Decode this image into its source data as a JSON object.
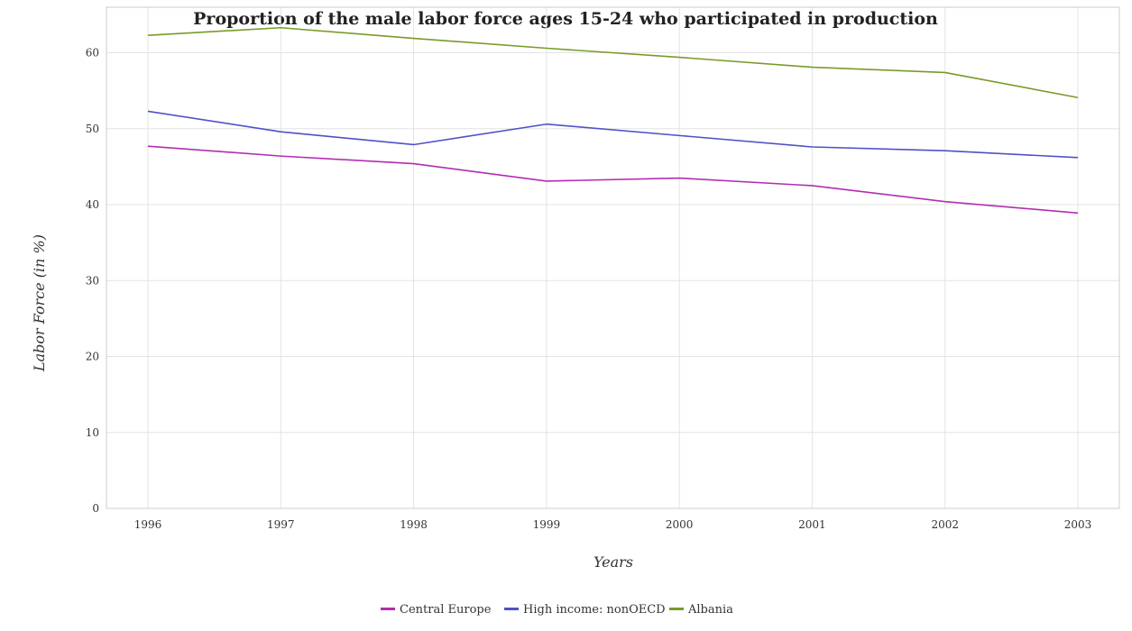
{
  "chart_data": {
    "type": "line",
    "title": "Proportion of the male labor force ages 15-24 who participated in production",
    "xlabel": "Years",
    "ylabel": "Labor Force (in %)",
    "x": [
      "1996",
      "1997",
      "1998",
      "1999",
      "2000",
      "2001",
      "2002",
      "2003"
    ],
    "ylim": [
      0,
      66
    ],
    "yticks": [
      "0",
      "10",
      "20",
      "30",
      "40",
      "50",
      "60"
    ],
    "grid": true,
    "legend_position": "bottom-center",
    "series": [
      {
        "name": "Central Europe",
        "color": "#b22db2",
        "values": [
          47.7,
          46.4,
          45.4,
          43.1,
          43.5,
          42.5,
          40.4,
          38.9
        ]
      },
      {
        "name": "High income: nonOECD",
        "color": "#5050c8",
        "values": [
          52.3,
          49.6,
          47.9,
          50.6,
          49.1,
          47.6,
          47.1,
          46.2
        ]
      },
      {
        "name": "Albania",
        "color": "#7a9a28",
        "values": [
          62.3,
          63.3,
          61.9,
          60.6,
          59.4,
          58.1,
          57.4,
          54.1
        ]
      }
    ]
  }
}
